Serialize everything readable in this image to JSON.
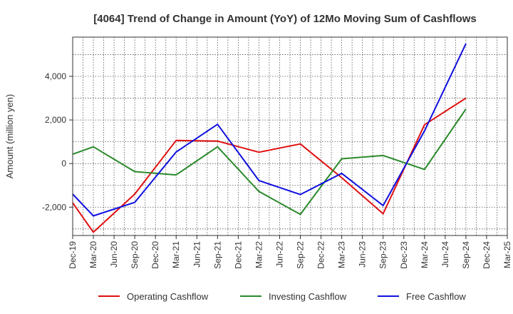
{
  "chart_data": {
    "type": "line",
    "title": "[4064]  Trend of Change in Amount (YoY) of 12Mo Moving Sum of Cashflows",
    "ylabel": "Amount (million yen)",
    "xlabel": "",
    "ylim": [
      -3300,
      5800
    ],
    "yticks": [
      -2000,
      0,
      2000,
      4000
    ],
    "ytick_labels": [
      "-2,000",
      "0",
      "2,000",
      "4,000"
    ],
    "grid": true,
    "legend_position": "bottom",
    "categories": [
      "Dec-19",
      "Mar-20",
      "Jun-20",
      "Sep-20",
      "Dec-20",
      "Mar-21",
      "Jun-21",
      "Sep-21",
      "Dec-21",
      "Mar-22",
      "Jun-22",
      "Sep-22",
      "Dec-22",
      "Mar-23",
      "Jun-23",
      "Sep-23",
      "Dec-23",
      "Mar-24",
      "Jun-24",
      "Sep-24",
      "Dec-24",
      "Mar-25"
    ],
    "series": [
      {
        "name": "Operating Cashflow",
        "color": "#e01010",
        "values": [
          -1800,
          -3150,
          null,
          -1400,
          null,
          1060,
          null,
          1030,
          null,
          520,
          null,
          900,
          null,
          -650,
          null,
          -2300,
          null,
          1780,
          null,
          3000,
          null,
          null
        ]
      },
      {
        "name": "Investing Cashflow",
        "color": "#2a8a2a",
        "values": [
          430,
          770,
          null,
          -370,
          null,
          -520,
          null,
          770,
          null,
          -1280,
          null,
          -2330,
          null,
          220,
          null,
          370,
          null,
          -270,
          null,
          2500,
          null,
          null
        ]
      },
      {
        "name": "Free Cashflow",
        "color": "#1010e0",
        "values": [
          -1400,
          -2400,
          null,
          -1780,
          null,
          530,
          null,
          1800,
          null,
          -780,
          null,
          -1420,
          null,
          -450,
          null,
          -1930,
          null,
          1500,
          null,
          5500,
          null,
          null
        ]
      }
    ]
  }
}
